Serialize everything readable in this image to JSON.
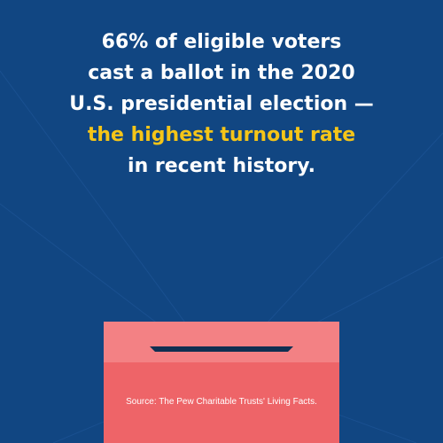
{
  "headline": {
    "line1": "66% of eligible voters",
    "line2": "cast a ballot in the 2020",
    "line3": "U.S. presidential election —",
    "line4": "the highest turnout rate",
    "line5": "in recent history."
  },
  "source": "Source: The Pew Charitable Trusts' Living Facts.",
  "colors": {
    "background": "#114682",
    "highlight": "#f5c518",
    "ballot_box": "#ee6468",
    "ballot_box_top": "#f38184",
    "slot": "#0f2f52"
  },
  "icons": {
    "ballot_box": "ballot-box-icon"
  }
}
